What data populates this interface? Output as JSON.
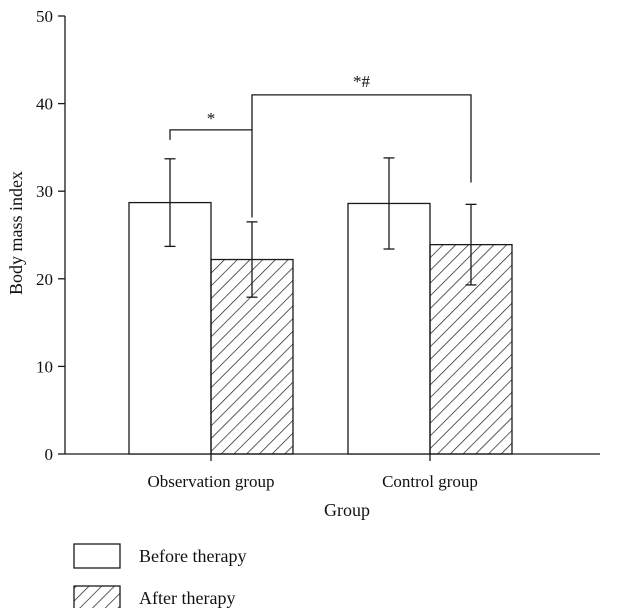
{
  "chart_data": {
    "type": "bar",
    "title": "",
    "xlabel": "Group",
    "ylabel": "Body mass index",
    "ylim": [
      0,
      50
    ],
    "yticks": [
      0,
      10,
      20,
      30,
      40,
      50
    ],
    "categories": [
      "Observation group",
      "Control group"
    ],
    "series": [
      {
        "name": "Before therapy",
        "values": [
          28.7,
          28.6
        ],
        "error": [
          5.0,
          5.2
        ],
        "fill": "none",
        "pattern": "solid-white"
      },
      {
        "name": "After therapy",
        "values": [
          22.2,
          23.9
        ],
        "error": [
          4.3,
          4.6
        ],
        "fill": "hatched",
        "pattern": "diagonal-hatch"
      }
    ],
    "annotations": [
      {
        "label": "*",
        "from": "Observation group / Before therapy",
        "to": "Observation group / After therapy"
      },
      {
        "label": "*#",
        "from": "Observation group / After therapy",
        "to": "Control group / After therapy"
      }
    ],
    "legend_position": "bottom-left",
    "grid": false,
    "colors": {
      "stroke": "#1a1a1a",
      "background": "#ffffff"
    }
  }
}
